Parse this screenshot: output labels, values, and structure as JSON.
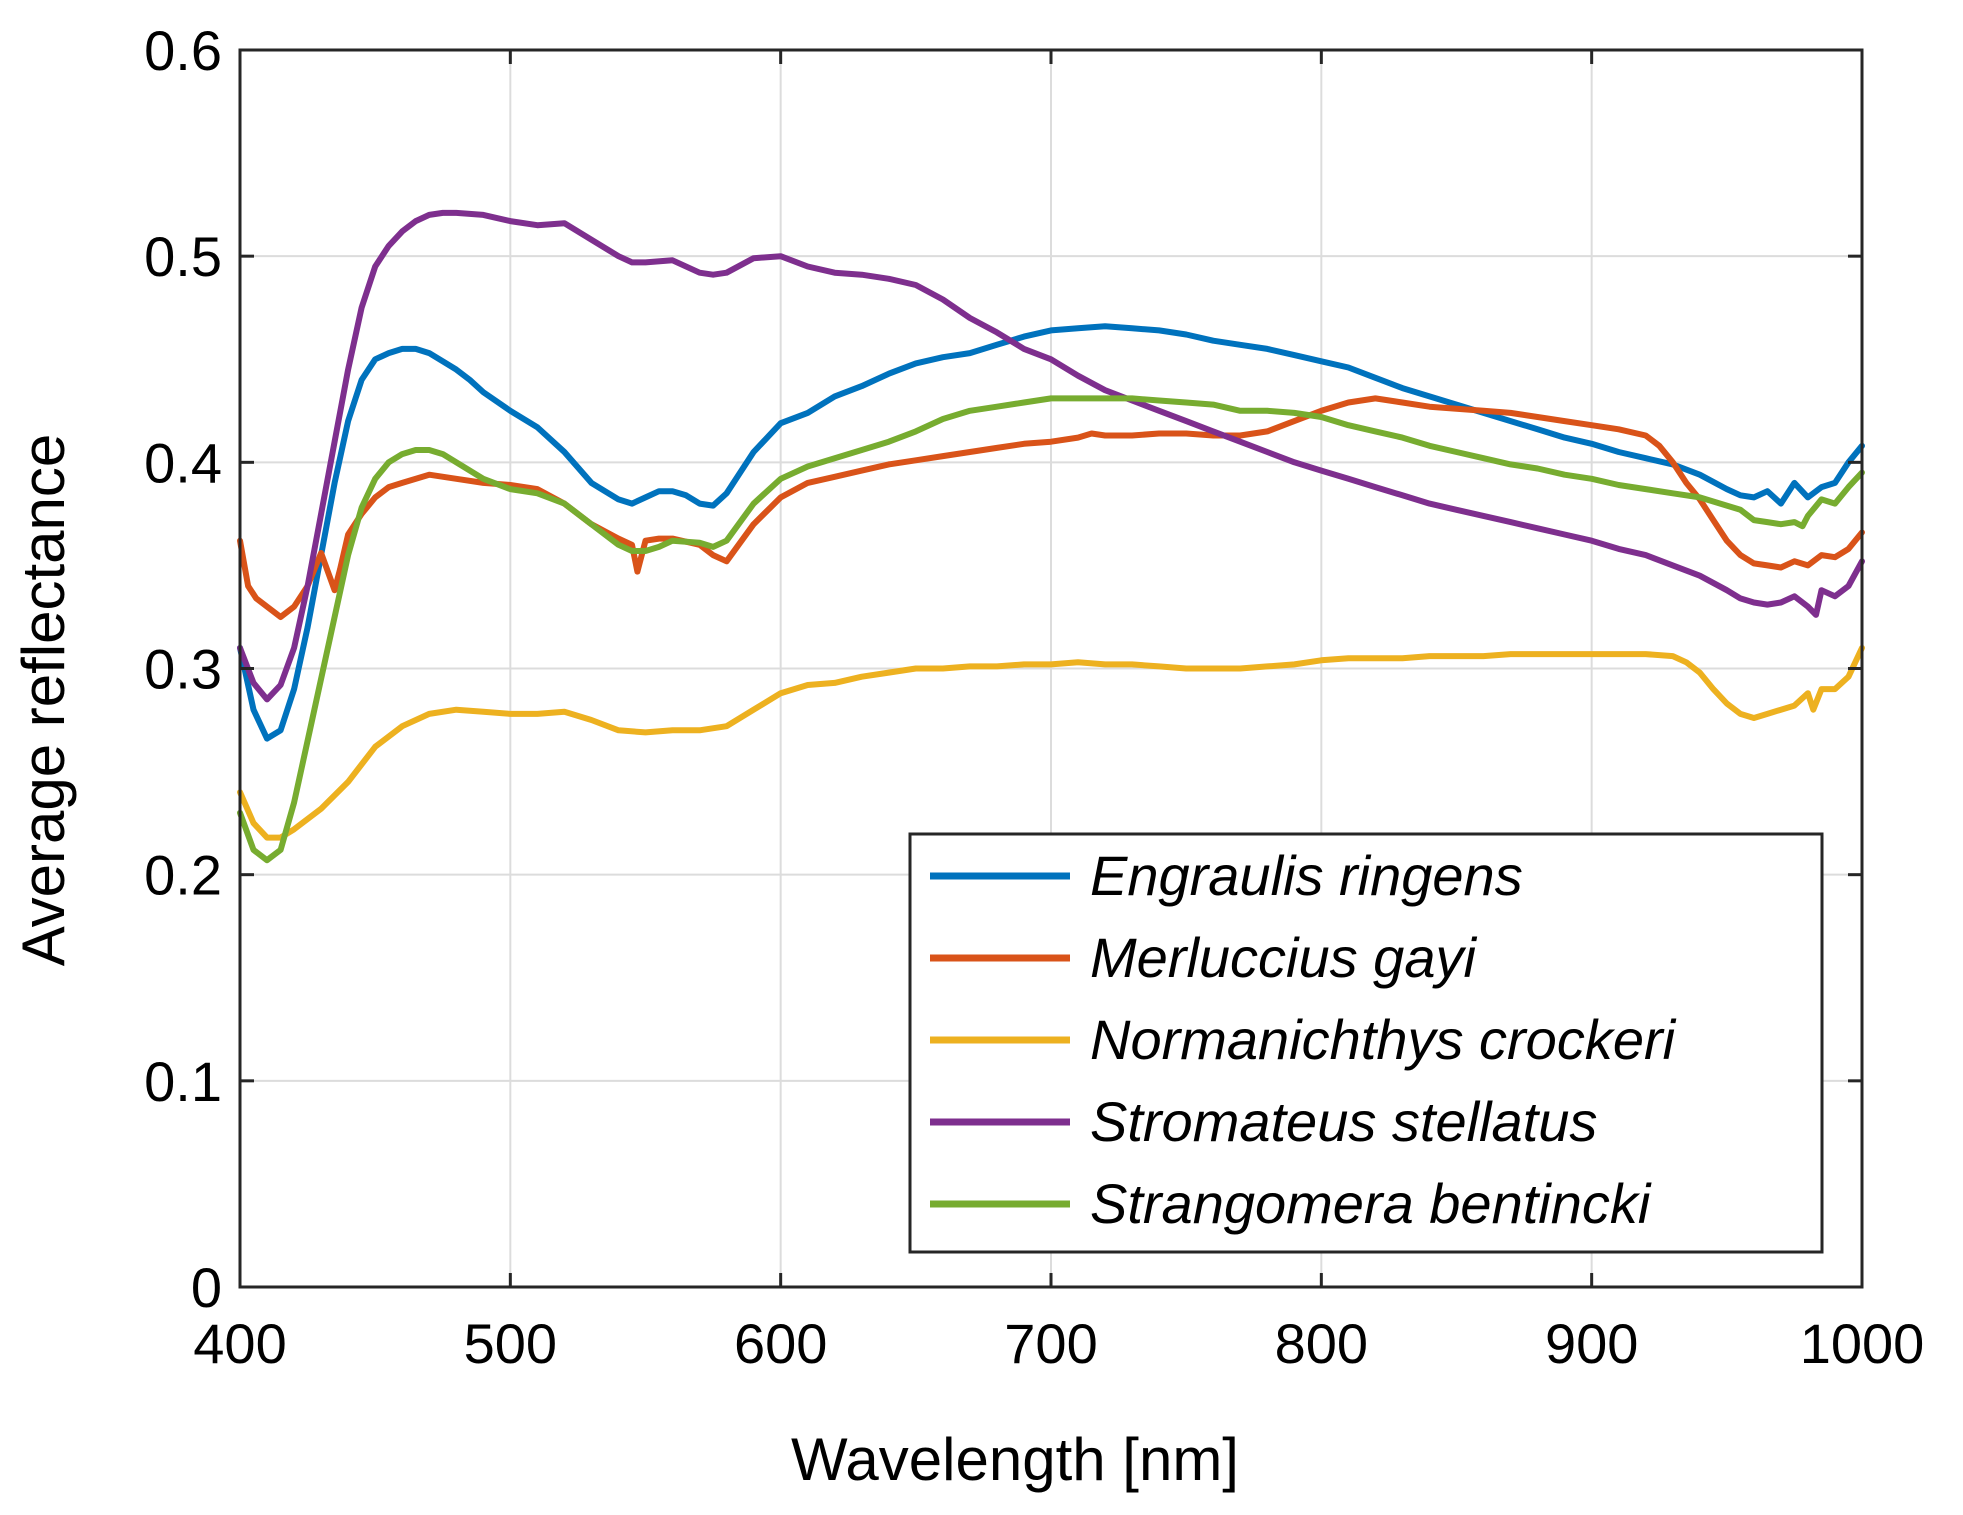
{
  "chart_data": {
    "type": "line",
    "title": "",
    "xlabel": "Wavelength [nm]",
    "ylabel": "Average reflectance",
    "xlim": [
      400,
      1000
    ],
    "ylim": [
      0,
      0.6
    ],
    "xticks": [
      400,
      500,
      600,
      700,
      800,
      900,
      1000
    ],
    "yticks": [
      0,
      0.1,
      0.2,
      0.3,
      0.4,
      0.5,
      0.6
    ],
    "xtick_labels": [
      "400",
      "500",
      "600",
      "700",
      "800",
      "900",
      "1000"
    ],
    "ytick_labels": [
      "0",
      "0.1",
      "0.2",
      "0.3",
      "0.4",
      "0.5",
      "0.6"
    ],
    "grid": true,
    "legend_position": "bottom-right",
    "series": [
      {
        "name": "Engraulis ringens",
        "color": "#0072BD",
        "x": [
          400,
          405,
          410,
          415,
          420,
          425,
          430,
          435,
          440,
          445,
          450,
          455,
          460,
          465,
          470,
          475,
          480,
          485,
          490,
          500,
          510,
          520,
          530,
          540,
          545,
          550,
          555,
          560,
          565,
          570,
          575,
          580,
          590,
          600,
          610,
          620,
          630,
          640,
          650,
          660,
          670,
          680,
          690,
          700,
          710,
          720,
          730,
          740,
          750,
          760,
          770,
          780,
          790,
          800,
          810,
          820,
          830,
          840,
          850,
          860,
          870,
          880,
          890,
          900,
          910,
          920,
          930,
          940,
          950,
          955,
          960,
          965,
          970,
          975,
          980,
          985,
          990,
          995,
          1000
        ],
        "values": [
          0.31,
          0.28,
          0.266,
          0.27,
          0.29,
          0.32,
          0.355,
          0.39,
          0.42,
          0.44,
          0.45,
          0.453,
          0.455,
          0.455,
          0.453,
          0.449,
          0.445,
          0.44,
          0.434,
          0.425,
          0.417,
          0.405,
          0.39,
          0.382,
          0.38,
          0.383,
          0.386,
          0.386,
          0.384,
          0.38,
          0.379,
          0.385,
          0.405,
          0.419,
          0.424,
          0.432,
          0.437,
          0.443,
          0.448,
          0.451,
          0.453,
          0.457,
          0.461,
          0.464,
          0.465,
          0.466,
          0.465,
          0.464,
          0.462,
          0.459,
          0.457,
          0.455,
          0.452,
          0.449,
          0.446,
          0.441,
          0.436,
          0.432,
          0.428,
          0.424,
          0.42,
          0.416,
          0.412,
          0.409,
          0.405,
          0.402,
          0.399,
          0.394,
          0.387,
          0.384,
          0.383,
          0.386,
          0.38,
          0.39,
          0.383,
          0.388,
          0.39,
          0.4,
          0.408
        ]
      },
      {
        "name": "Merluccius gayi",
        "color": "#D95319",
        "x": [
          400,
          403,
          406,
          410,
          415,
          420,
          425,
          430,
          435,
          437,
          440,
          445,
          450,
          455,
          460,
          470,
          480,
          490,
          500,
          510,
          520,
          530,
          540,
          545,
          547,
          550,
          555,
          560,
          570,
          575,
          580,
          590,
          600,
          610,
          620,
          630,
          640,
          650,
          660,
          670,
          680,
          690,
          700,
          710,
          715,
          720,
          730,
          740,
          750,
          760,
          770,
          780,
          790,
          800,
          810,
          820,
          830,
          840,
          850,
          860,
          870,
          880,
          890,
          900,
          910,
          920,
          925,
          930,
          935,
          940,
          945,
          950,
          955,
          960,
          965,
          970,
          975,
          980,
          985,
          990,
          995,
          1000
        ],
        "values": [
          0.362,
          0.34,
          0.334,
          0.33,
          0.325,
          0.33,
          0.34,
          0.356,
          0.338,
          0.348,
          0.365,
          0.375,
          0.383,
          0.388,
          0.39,
          0.394,
          0.392,
          0.39,
          0.389,
          0.387,
          0.38,
          0.37,
          0.363,
          0.36,
          0.347,
          0.362,
          0.363,
          0.363,
          0.36,
          0.355,
          0.352,
          0.37,
          0.383,
          0.39,
          0.393,
          0.396,
          0.399,
          0.401,
          0.403,
          0.405,
          0.407,
          0.409,
          0.41,
          0.412,
          0.414,
          0.413,
          0.413,
          0.414,
          0.414,
          0.413,
          0.413,
          0.415,
          0.42,
          0.425,
          0.429,
          0.431,
          0.429,
          0.427,
          0.426,
          0.425,
          0.424,
          0.422,
          0.42,
          0.418,
          0.416,
          0.413,
          0.408,
          0.4,
          0.39,
          0.382,
          0.372,
          0.362,
          0.355,
          0.351,
          0.35,
          0.349,
          0.352,
          0.35,
          0.355,
          0.354,
          0.358,
          0.366
        ]
      },
      {
        "name": "Normanichthys crockeri",
        "color": "#EDB120",
        "x": [
          400,
          405,
          410,
          415,
          420,
          430,
          440,
          450,
          460,
          470,
          480,
          490,
          500,
          510,
          520,
          530,
          540,
          550,
          560,
          570,
          580,
          590,
          600,
          610,
          620,
          630,
          640,
          650,
          660,
          670,
          680,
          690,
          700,
          710,
          720,
          730,
          740,
          750,
          760,
          770,
          780,
          790,
          800,
          810,
          820,
          830,
          840,
          850,
          860,
          870,
          880,
          890,
          900,
          910,
          920,
          930,
          935,
          940,
          945,
          950,
          955,
          960,
          965,
          970,
          975,
          980,
          982,
          985,
          990,
          995,
          1000
        ],
        "values": [
          0.24,
          0.225,
          0.218,
          0.218,
          0.222,
          0.232,
          0.245,
          0.262,
          0.272,
          0.278,
          0.28,
          0.279,
          0.278,
          0.278,
          0.279,
          0.275,
          0.27,
          0.269,
          0.27,
          0.27,
          0.272,
          0.28,
          0.288,
          0.292,
          0.293,
          0.296,
          0.298,
          0.3,
          0.3,
          0.301,
          0.301,
          0.302,
          0.302,
          0.303,
          0.302,
          0.302,
          0.301,
          0.3,
          0.3,
          0.3,
          0.301,
          0.302,
          0.304,
          0.305,
          0.305,
          0.305,
          0.306,
          0.306,
          0.306,
          0.307,
          0.307,
          0.307,
          0.307,
          0.307,
          0.307,
          0.306,
          0.303,
          0.298,
          0.29,
          0.283,
          0.278,
          0.276,
          0.278,
          0.28,
          0.282,
          0.288,
          0.28,
          0.29,
          0.29,
          0.296,
          0.31
        ]
      },
      {
        "name": "Stromateus stellatus",
        "color": "#7E2F8E",
        "x": [
          400,
          405,
          410,
          415,
          420,
          425,
          430,
          435,
          440,
          445,
          450,
          455,
          460,
          465,
          470,
          475,
          480,
          490,
          500,
          510,
          520,
          530,
          540,
          545,
          550,
          560,
          570,
          575,
          580,
          590,
          600,
          610,
          620,
          630,
          640,
          650,
          660,
          670,
          680,
          690,
          700,
          710,
          720,
          730,
          740,
          750,
          760,
          770,
          780,
          790,
          800,
          810,
          820,
          830,
          840,
          850,
          860,
          870,
          880,
          890,
          900,
          910,
          920,
          930,
          940,
          950,
          955,
          960,
          965,
          970,
          975,
          980,
          983,
          985,
          990,
          995,
          1000
        ],
        "values": [
          0.31,
          0.293,
          0.285,
          0.292,
          0.31,
          0.34,
          0.375,
          0.41,
          0.445,
          0.475,
          0.495,
          0.505,
          0.512,
          0.517,
          0.52,
          0.521,
          0.521,
          0.52,
          0.517,
          0.515,
          0.516,
          0.508,
          0.5,
          0.497,
          0.497,
          0.498,
          0.492,
          0.491,
          0.492,
          0.499,
          0.5,
          0.495,
          0.492,
          0.491,
          0.489,
          0.486,
          0.479,
          0.47,
          0.463,
          0.455,
          0.45,
          0.442,
          0.435,
          0.43,
          0.425,
          0.42,
          0.415,
          0.41,
          0.405,
          0.4,
          0.396,
          0.392,
          0.388,
          0.384,
          0.38,
          0.377,
          0.374,
          0.371,
          0.368,
          0.365,
          0.362,
          0.358,
          0.355,
          0.35,
          0.345,
          0.338,
          0.334,
          0.332,
          0.331,
          0.332,
          0.335,
          0.33,
          0.326,
          0.338,
          0.335,
          0.34,
          0.352
        ]
      },
      {
        "name": "Strangomera bentincki",
        "color": "#77AC30",
        "x": [
          400,
          405,
          410,
          415,
          420,
          425,
          430,
          435,
          440,
          445,
          450,
          455,
          460,
          465,
          470,
          475,
          480,
          490,
          500,
          510,
          520,
          530,
          540,
          545,
          550,
          555,
          560,
          570,
          575,
          580,
          590,
          600,
          610,
          620,
          630,
          640,
          650,
          660,
          670,
          680,
          690,
          700,
          710,
          720,
          730,
          740,
          750,
          760,
          770,
          780,
          790,
          800,
          810,
          820,
          830,
          840,
          850,
          860,
          870,
          880,
          890,
          900,
          910,
          920,
          930,
          940,
          950,
          955,
          960,
          965,
          970,
          975,
          978,
          980,
          985,
          990,
          995,
          1000
        ],
        "values": [
          0.23,
          0.212,
          0.207,
          0.212,
          0.235,
          0.265,
          0.295,
          0.325,
          0.355,
          0.378,
          0.392,
          0.4,
          0.404,
          0.406,
          0.406,
          0.404,
          0.4,
          0.392,
          0.387,
          0.385,
          0.38,
          0.37,
          0.36,
          0.357,
          0.357,
          0.359,
          0.362,
          0.361,
          0.359,
          0.362,
          0.38,
          0.392,
          0.398,
          0.402,
          0.406,
          0.41,
          0.415,
          0.421,
          0.425,
          0.427,
          0.429,
          0.431,
          0.431,
          0.431,
          0.431,
          0.43,
          0.429,
          0.428,
          0.425,
          0.425,
          0.424,
          0.422,
          0.418,
          0.415,
          0.412,
          0.408,
          0.405,
          0.402,
          0.399,
          0.397,
          0.394,
          0.392,
          0.389,
          0.387,
          0.385,
          0.383,
          0.379,
          0.377,
          0.372,
          0.371,
          0.37,
          0.371,
          0.369,
          0.374,
          0.382,
          0.38,
          0.388,
          0.395
        ]
      }
    ]
  }
}
